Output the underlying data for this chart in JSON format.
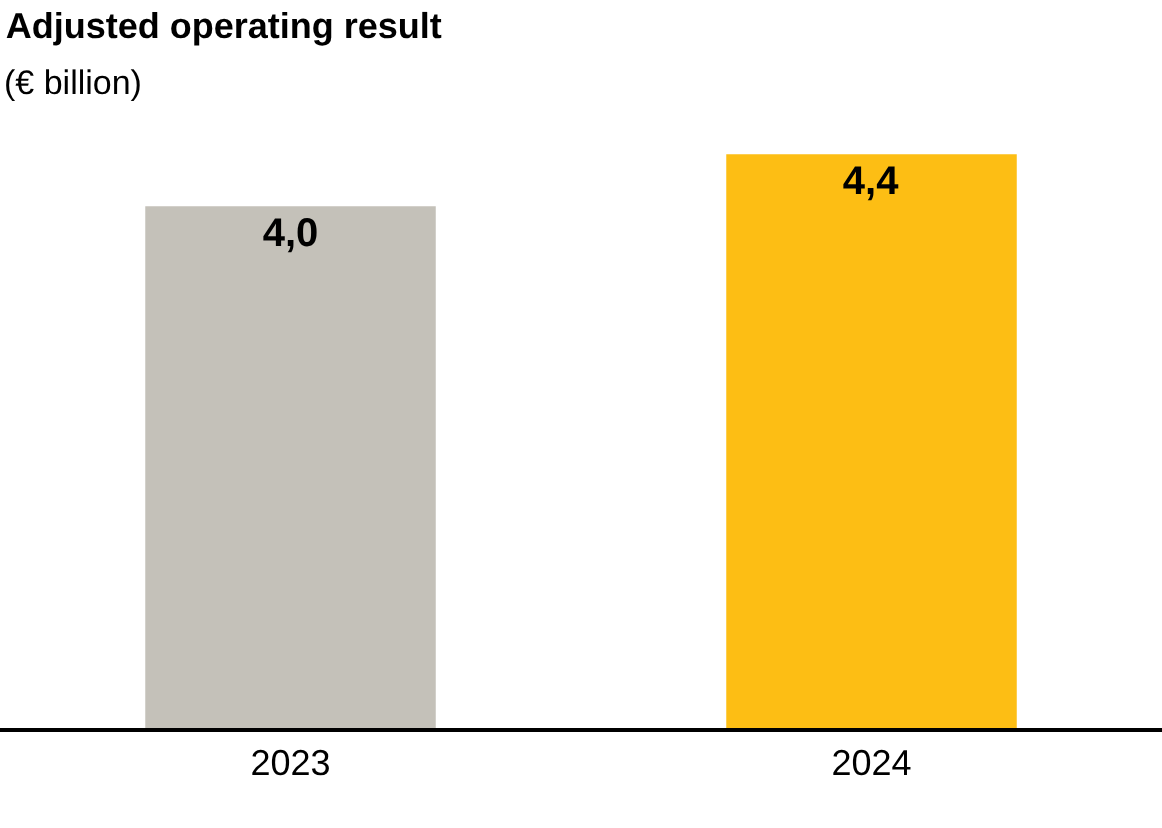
{
  "chart_data": {
    "type": "bar",
    "title": "Adjusted operating result",
    "subtitle": "(€ billion)",
    "categories": [
      "2023",
      "2024"
    ],
    "values": [
      4.0,
      4.4
    ],
    "value_labels": [
      "4,0",
      "4,4"
    ],
    "colors": [
      "#c4c1b9",
      "#fdbe14"
    ],
    "grid": false,
    "legend": false
  }
}
